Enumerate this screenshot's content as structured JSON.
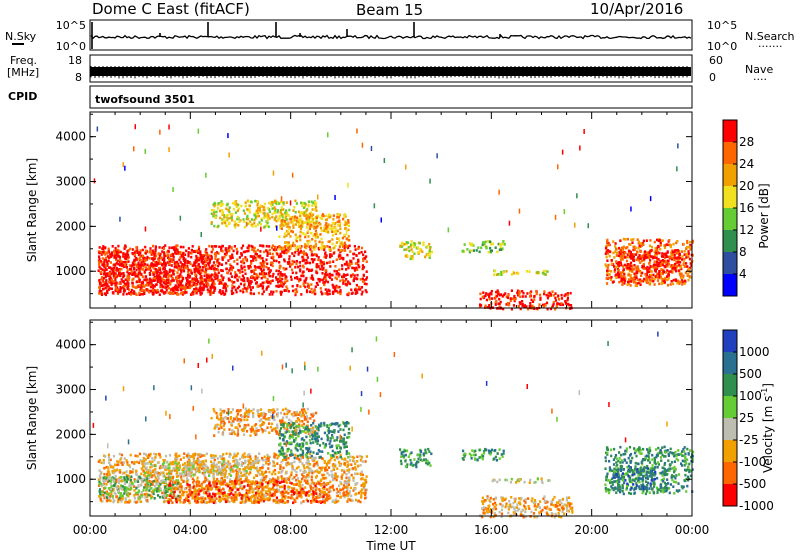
{
  "header": {
    "title": "Dome C East (fitACF)",
    "beam": "Beam 15",
    "date": "10/Apr/2016"
  },
  "panels": {
    "nsky": {
      "label": "N.Sky",
      "left_ticks": [
        "10^5",
        "10^0"
      ],
      "right_label": "N.Search",
      "right_ticks": [
        "10^5",
        "10^0"
      ],
      "right_legend": "·······"
    },
    "freq": {
      "label_line1": "Freq.",
      "label_line2": "[MHz]",
      "left_ticks": [
        "18",
        "8"
      ],
      "right_label": "Nave",
      "right_ticks": [
        "60",
        "0"
      ],
      "right_legend": "····"
    },
    "cpid": {
      "label": "CPID",
      "value": "twofsound 3501"
    }
  },
  "chart_data": [
    {
      "type": "heatmap",
      "title": "",
      "xlabel": "",
      "ylabel": "Slant Range [km]",
      "xlim": [
        "00:00",
        "24:00"
      ],
      "ylim": [
        180,
        4550
      ],
      "y_ticks": [
        "1000",
        "2000",
        "3000",
        "4000"
      ],
      "colorbar": {
        "label": "Power [dB]",
        "ticks": [
          "4",
          "8",
          "12",
          "16",
          "20",
          "24",
          "28"
        ],
        "range": [
          0,
          32
        ],
        "colors": [
          "#0000ff",
          "#2e4fa0",
          "#2f8f4f",
          "#66cc33",
          "#f0e020",
          "#f2a000",
          "#ff6600",
          "#ff0000"
        ]
      },
      "regions": [
        {
          "t": [
            0.3,
            11.0
          ],
          "r": [
            500,
            1600
          ],
          "level": 7
        },
        {
          "t": [
            0.3,
            5.0
          ],
          "r": [
            500,
            1500
          ],
          "level": 7
        },
        {
          "t": [
            4.8,
            9.0
          ],
          "r": [
            2000,
            2600
          ],
          "level": 4
        },
        {
          "t": [
            7.5,
            10.3
          ],
          "r": [
            1500,
            2300
          ],
          "level": 5
        },
        {
          "t": [
            12.3,
            13.6
          ],
          "r": [
            1300,
            1700
          ],
          "level": 4
        },
        {
          "t": [
            14.8,
            16.5
          ],
          "r": [
            1450,
            1700
          ],
          "level": 3
        },
        {
          "t": [
            16.0,
            18.3
          ],
          "r": [
            950,
            1050
          ],
          "level": 4
        },
        {
          "t": [
            15.5,
            19.2
          ],
          "r": [
            180,
            600
          ],
          "level": 7
        },
        {
          "t": [
            20.5,
            24.0
          ],
          "r": [
            700,
            1750
          ],
          "level": 6
        },
        {
          "t": [
            21.0,
            23.5
          ],
          "r": [
            800,
            1500
          ],
          "level": 7
        }
      ]
    },
    {
      "type": "heatmap",
      "title": "",
      "xlabel": "Time UT",
      "ylabel": "Slant Range [km]",
      "xlim": [
        "00:00",
        "24:00"
      ],
      "ylim": [
        180,
        4550
      ],
      "x_ticks": [
        "00:00",
        "04:00",
        "08:00",
        "12:00",
        "16:00",
        "20:00",
        "00:00"
      ],
      "y_ticks": [
        "1000",
        "2000",
        "3000",
        "4000"
      ],
      "colorbar": {
        "label": "Velocity [m s",
        "label_sup": "-1",
        "label_end": "]",
        "ticks": [
          "1000",
          "500",
          "100",
          "25",
          "-25",
          "-100",
          "-500",
          "-1000"
        ],
        "colors": [
          "#2040c0",
          "#2a7090",
          "#2f8f4f",
          "#66cc33",
          "#bdbdb0",
          "#f2a000",
          "#ff6600",
          "#ff0000"
        ]
      },
      "regions": [
        {
          "t": [
            0.3,
            11.0
          ],
          "r": [
            500,
            1600
          ],
          "level": 5
        },
        {
          "t": [
            0.3,
            3.5
          ],
          "r": [
            600,
            1100
          ],
          "level": 3
        },
        {
          "t": [
            2.0,
            6.5
          ],
          "r": [
            1100,
            1450
          ],
          "level": 4
        },
        {
          "t": [
            3.0,
            9.5
          ],
          "r": [
            500,
            1000
          ],
          "level": 6
        },
        {
          "t": [
            4.8,
            9.0
          ],
          "r": [
            2000,
            2600
          ],
          "level": 5
        },
        {
          "t": [
            7.5,
            10.3
          ],
          "r": [
            1500,
            2300
          ],
          "level": 2
        },
        {
          "t": [
            12.3,
            13.6
          ],
          "r": [
            1300,
            1700
          ],
          "level": 2
        },
        {
          "t": [
            14.8,
            16.5
          ],
          "r": [
            1450,
            1700
          ],
          "level": 2
        },
        {
          "t": [
            16.0,
            18.3
          ],
          "r": [
            950,
            1050
          ],
          "level": 4
        },
        {
          "t": [
            15.5,
            19.2
          ],
          "r": [
            180,
            650
          ],
          "level": 5
        },
        {
          "t": [
            20.5,
            24.0
          ],
          "r": [
            700,
            1750
          ],
          "level": 2
        },
        {
          "t": [
            20.8,
            22.5
          ],
          "r": [
            800,
            1300
          ],
          "level": 1
        }
      ]
    }
  ]
}
